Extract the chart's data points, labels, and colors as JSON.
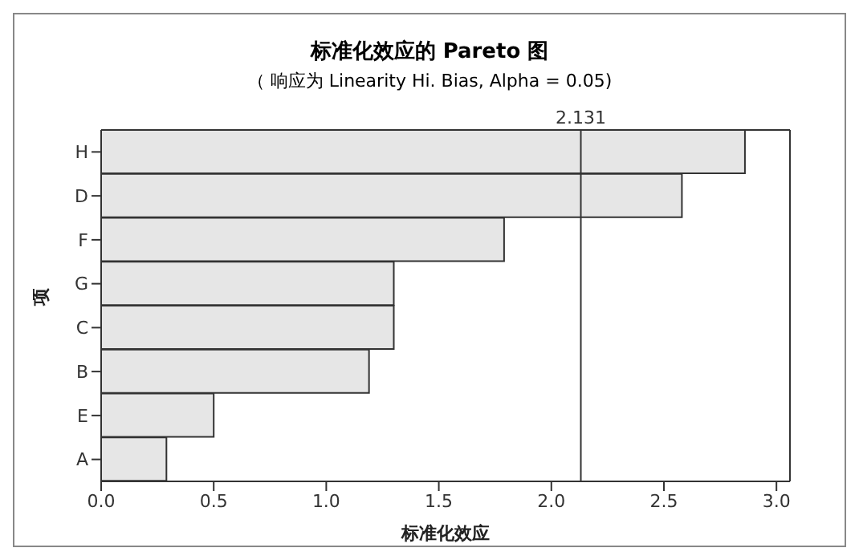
{
  "chart_data": {
    "type": "bar",
    "orientation": "horizontal",
    "title": "标准化效应的 Pareto 图",
    "subtitle": "（ 响应为 Linearity Hi. Bias,  Alpha =  0.05)",
    "xlabel": "标准化效应",
    "ylabel": "项",
    "categories": [
      "H",
      "D",
      "F",
      "G",
      "C",
      "B",
      "E",
      "A"
    ],
    "values": [
      2.86,
      2.58,
      1.79,
      1.3,
      1.3,
      1.19,
      0.5,
      0.29
    ],
    "color": "#e6e6e6",
    "xlim": [
      0,
      3.06
    ],
    "xticks": [
      {
        "value": 0,
        "label": "0.0"
      },
      0.5,
      {
        "value": 1,
        "label": "1.0"
      },
      1.5,
      {
        "value": 2,
        "label": "2.0"
      },
      2.5,
      {
        "value": 3,
        "label": "3.0"
      }
    ],
    "ref_lines": [
      {
        "axis": "x",
        "value": 2.131,
        "label": "2.131",
        "color": "#333333"
      }
    ],
    "grid": false
  }
}
